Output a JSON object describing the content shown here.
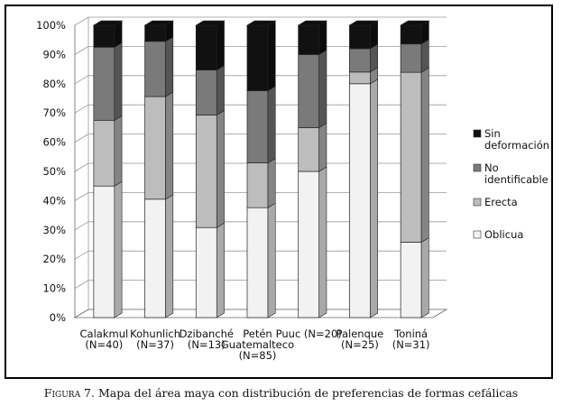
{
  "chart_data": {
    "type": "bar",
    "stacked": true,
    "normalized_percent": true,
    "categories": [
      [
        "Calakmul",
        "(N=40)"
      ],
      [
        "Kohunlich",
        "(N=37)"
      ],
      [
        "Dzibanché",
        "(N=13)"
      ],
      [
        "Petén",
        "Guatemalteco",
        "(N=85)"
      ],
      [
        "Puuc (N=20)"
      ],
      [
        "Palenque",
        "(N=25)"
      ],
      [
        "Toniná",
        "(N=31)"
      ]
    ],
    "series": [
      {
        "name": "Oblicua",
        "color": "#f2f2f2",
        "values": [
          45,
          40.5,
          30.8,
          37.6,
          50,
          80,
          25.8
        ]
      },
      {
        "name": "Erecta",
        "color": "#bdbdbd",
        "values": [
          22.5,
          35.1,
          38.5,
          15.3,
          15,
          4,
          58.1
        ]
      },
      {
        "name": "No identificable",
        "color": "#7a7a7a",
        "values": [
          25,
          18.9,
          15.4,
          24.7,
          25,
          8,
          9.7
        ]
      },
      {
        "name": "Sin deformación",
        "color": "#111111",
        "values": [
          7.5,
          5.5,
          15.3,
          22.4,
          10,
          8,
          6.4
        ]
      }
    ],
    "legend_entries": [
      {
        "lines": [
          "Sin",
          "deformación"
        ],
        "color": "#111111"
      },
      {
        "lines": [
          "No",
          "identificable"
        ],
        "color": "#7a7a7a"
      },
      {
        "lines": [
          "Erecta"
        ],
        "color": "#bdbdbd"
      },
      {
        "lines": [
          "Oblicua"
        ],
        "color": "#f2f2f2"
      }
    ],
    "y_ticks": [
      "0%",
      "10%",
      "20%",
      "30%",
      "40%",
      "50%",
      "60%",
      "70%",
      "80%",
      "90%",
      "100%"
    ],
    "ylim": [
      0,
      100
    ],
    "grid": true,
    "legend_position": "right"
  },
  "caption": {
    "figure_label": "Figura 7.",
    "text": "Mapa del área maya con distribución de preferencias de formas cefálicas"
  }
}
